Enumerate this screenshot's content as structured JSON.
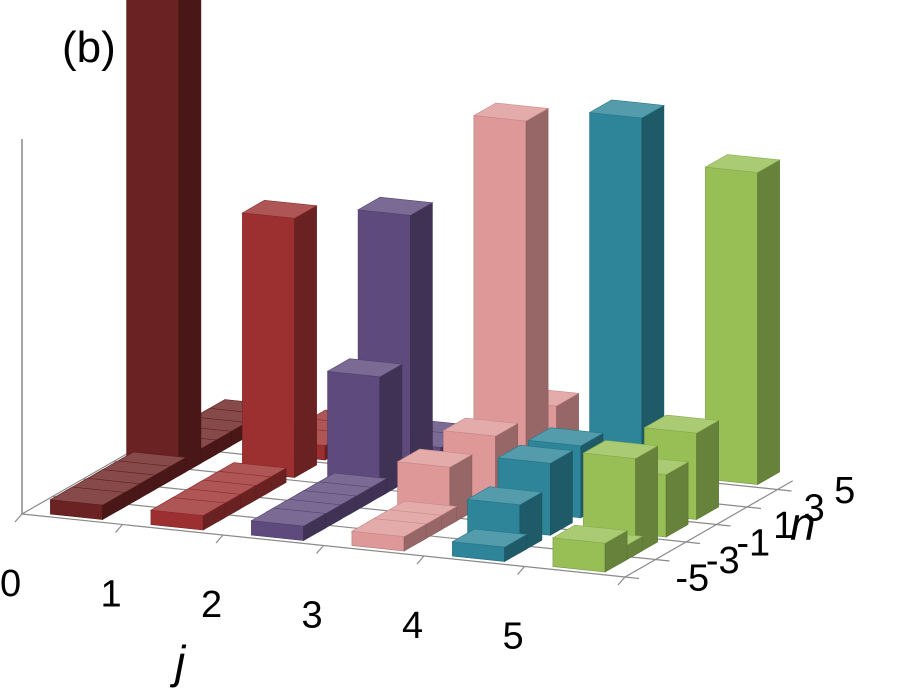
{
  "panel_label": "(b)",
  "chart_data": {
    "type": "bar",
    "subtype": "3d-bar",
    "panel_label": "(b)",
    "xlabel": "j",
    "ylabel": "n",
    "x_ticks": [
      "0",
      "1",
      "2",
      "3",
      "4",
      "5"
    ],
    "y_ticks": [
      "-5",
      "-3",
      "-1",
      "1",
      "3",
      "5"
    ],
    "y_tick_values": [
      -5,
      -3,
      -1,
      1,
      3,
      5
    ],
    "j": [
      0,
      1,
      2,
      3,
      4,
      5
    ],
    "n": [
      -5,
      -4,
      -3,
      -2,
      -1,
      0,
      1,
      2,
      3,
      4,
      5
    ],
    "zlim": [
      0,
      1.0
    ],
    "grid": false,
    "legend": "none",
    "colors": [
      "#6b2222",
      "#9c3030",
      "#5e4a7c",
      "#de9898",
      "#2e8599",
      "#97bf56"
    ],
    "values": [
      [
        0.03,
        0.03,
        0.03,
        0.03,
        0.03,
        1.0,
        0.03,
        0.03,
        0.03,
        0.03,
        0.03
      ],
      [
        0.03,
        0.03,
        0.03,
        0.03,
        0.03,
        0.0,
        0.54,
        0.0,
        0.03,
        0.03,
        0.03
      ],
      [
        0.03,
        0.03,
        0.03,
        0.03,
        0.03,
        0.25,
        0.0,
        0.55,
        0.0,
        0.03,
        0.03
      ],
      [
        0.03,
        0.03,
        0.03,
        0.12,
        0.0,
        0.0,
        0.13,
        0.0,
        0.75,
        0.0,
        0.12
      ],
      [
        0.03,
        0.1,
        0.0,
        0.15,
        0.0,
        0.15,
        0.0,
        0.0,
        0.0,
        0.76,
        0.07
      ],
      [
        0.06,
        0.03,
        0.2,
        0.0,
        0.13,
        0.0,
        0.18,
        0.0,
        0.0,
        0.0,
        0.65
      ]
    ]
  }
}
